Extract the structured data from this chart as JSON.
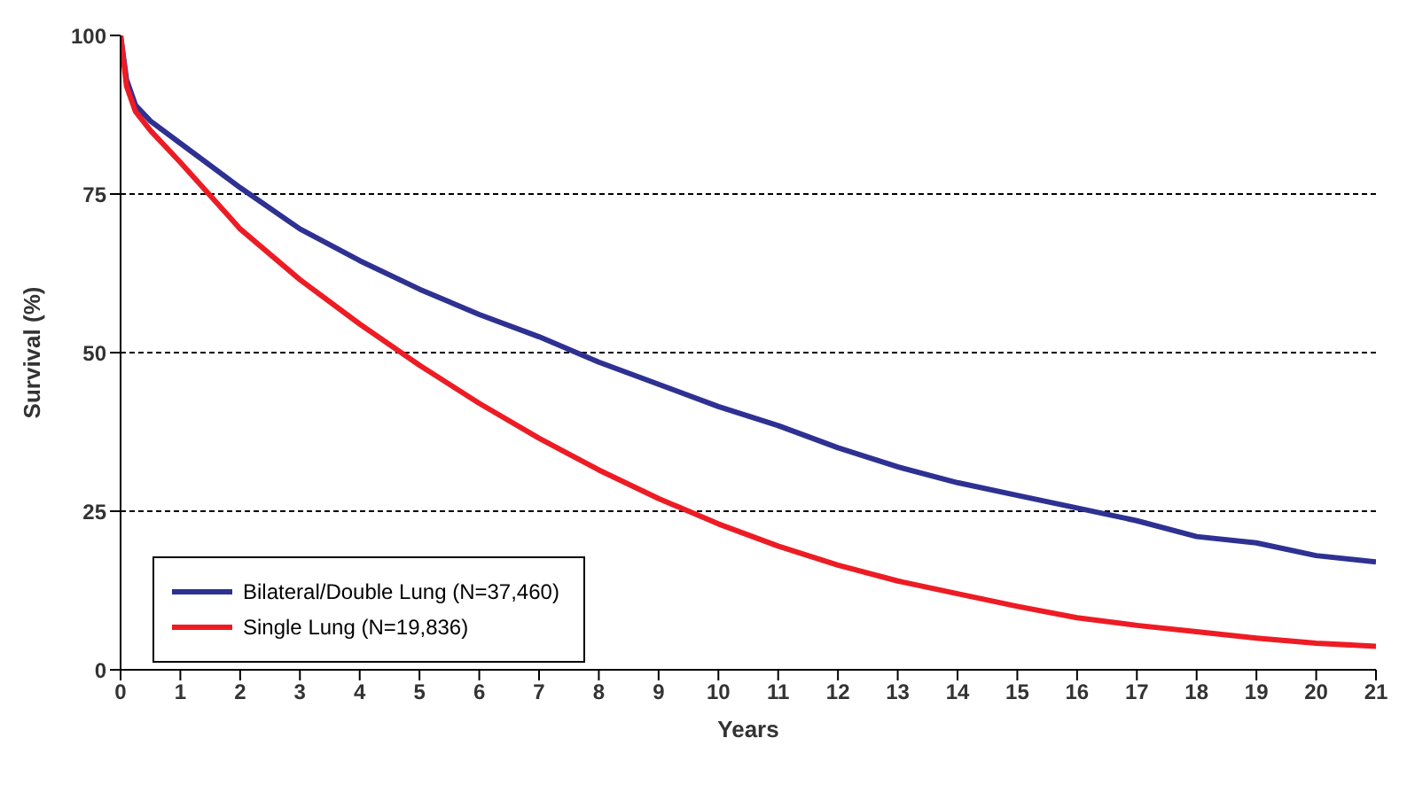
{
  "chart_data": {
    "type": "line",
    "xlabel": "Years",
    "ylabel": "Survival (%)",
    "xlim": [
      0,
      21
    ],
    "xticks": [
      0,
      1,
      2,
      3,
      4,
      5,
      6,
      7,
      8,
      9,
      10,
      11,
      12,
      13,
      14,
      15,
      16,
      17,
      18,
      19,
      20,
      21
    ],
    "ylim": [
      0,
      100
    ],
    "yticks": [
      0,
      25,
      50,
      75,
      100
    ],
    "grid": "y",
    "legend": "bottom left",
    "marker": "none",
    "line_style": "solid",
    "series": [
      {
        "name": "Bilateral/Double Lung (N=37,460)",
        "color": "#2e3192",
        "x": [
          0,
          0.1,
          0.25,
          0.5,
          1,
          2,
          3,
          4,
          5,
          6,
          7,
          8,
          9,
          10,
          11,
          12,
          13,
          14,
          15,
          16,
          17,
          18,
          19,
          20,
          21
        ],
        "values": [
          100,
          93,
          89,
          86.5,
          83,
          76,
          69.5,
          64.5,
          60,
          56,
          52.5,
          48.5,
          45,
          41.5,
          38.5,
          35,
          32,
          29.5,
          27.5,
          25.5,
          23.5,
          21,
          20,
          18,
          17
        ]
      },
      {
        "name": "Single Lung (N=19,836)",
        "color": "#ed1c24",
        "x": [
          0,
          0.1,
          0.25,
          0.5,
          1,
          2,
          3,
          4,
          5,
          6,
          7,
          8,
          9,
          10,
          11,
          12,
          13,
          14,
          15,
          16,
          17,
          18,
          19,
          20,
          21
        ],
        "values": [
          100,
          92,
          88,
          85,
          80,
          69.5,
          61.5,
          54.5,
          48,
          42,
          36.5,
          31.5,
          27,
          23,
          19.5,
          16.5,
          14,
          12,
          10,
          8.2,
          7,
          6,
          5,
          4.2,
          3.7
        ]
      }
    ]
  }
}
